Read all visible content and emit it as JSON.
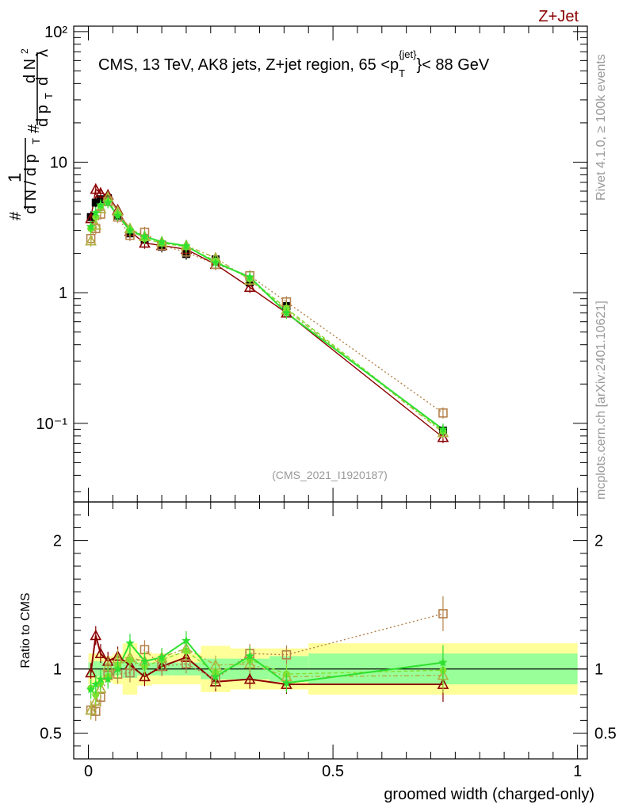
{
  "header": {
    "process_label": "Z+Jet",
    "plot_title": "CMS, 13 TeV, AK8 jets, Z+jet region, 65 <p_T^{jet}< 88 GeV",
    "title_main": "CMS, 13 TeV, AK8 jets, Z+jet region, 65 <p",
    "title_sub": "T",
    "title_sup": "{jet}",
    "title_end": "}< 88 GeV",
    "analysis_id": "(CMS_2021_I1920187)"
  },
  "side_labels": {
    "rivet": "Rivet 4.1.0, ≥ 100k events",
    "mcplots": "mcplots.cern.ch [arXiv:2401.10621]"
  },
  "colors": {
    "data": "#000000",
    "dark_red": "#8b0000",
    "tan": "#b5824b",
    "olive": "#b0b040",
    "light_green": "#80e030",
    "green": "#30e030",
    "band_yellow": "#ffff99",
    "band_green": "#99ff99"
  },
  "chart_data": [
    {
      "type": "scatter",
      "panel": "main",
      "xlabel": "groomed width (charged-only)",
      "ylabel": "1/dN/dp_T d²N/dp_T dλ",
      "xlim": [
        -0.03,
        1.02
      ],
      "ylim": [
        0.025,
        110
      ],
      "y_scale": "log",
      "y_ticks": [
        "10⁻¹",
        "1",
        "10",
        "10²"
      ],
      "x_ticks": [
        "0",
        "0.5",
        "1"
      ],
      "x": [
        0.005,
        0.015,
        0.025,
        0.04,
        0.06,
        0.085,
        0.115,
        0.15,
        0.2,
        0.26,
        0.33,
        0.405,
        0.725
      ],
      "series": [
        {
          "marker": "square-filled",
          "color": "#000000",
          "values": [
            3.8,
            4.9,
            5.2,
            5.3,
            3.9,
            2.85,
            2.55,
            2.25,
            1.98,
            1.8,
            1.2,
            0.79,
            0.088
          ]
        },
        {
          "marker": "triangle-open",
          "color": "#8b0000",
          "values": [
            3.7,
            6.2,
            5.8,
            5.6,
            4.3,
            2.95,
            2.4,
            2.3,
            2.15,
            1.65,
            1.1,
            0.7,
            0.078
          ]
        },
        {
          "marker": "square-open",
          "color": "#b5824b",
          "values": [
            2.6,
            3.1,
            4.0,
            5.0,
            3.8,
            2.75,
            2.9,
            2.3,
            2.05,
            1.65,
            1.35,
            0.85,
            0.12
          ]
        },
        {
          "marker": "triangle-open",
          "color": "#b0b040",
          "values": [
            2.5,
            3.3,
            4.4,
            5.4,
            4.2,
            3.1,
            2.7,
            2.45,
            2.3,
            1.85,
            1.25,
            0.74,
            0.085
          ]
        },
        {
          "marker": "circle-filled",
          "color": "#80e030",
          "values": [
            3.1,
            3.8,
            4.6,
            5.0,
            4.0,
            3.05,
            2.6,
            2.4,
            2.25,
            1.75,
            1.28,
            0.76,
            0.087
          ]
        },
        {
          "marker": "star",
          "color": "#30e030",
          "values": [
            3.2,
            4.1,
            4.7,
            4.9,
            3.9,
            3.0,
            2.7,
            2.45,
            2.28,
            1.7,
            1.32,
            0.7,
            0.09
          ]
        }
      ]
    },
    {
      "type": "line",
      "panel": "ratio",
      "ylabel": "Ratio to CMS",
      "ylim": [
        0.3,
        2.3
      ],
      "y_ticks": [
        "0.5",
        "1",
        "2"
      ],
      "x": [
        0.005,
        0.015,
        0.025,
        0.04,
        0.06,
        0.085,
        0.115,
        0.15,
        0.2,
        0.26,
        0.33,
        0.405,
        0.725
      ],
      "band_bins": [
        [
          0.0,
          0.01
        ],
        [
          0.01,
          0.02
        ],
        [
          0.02,
          0.03
        ],
        [
          0.03,
          0.05
        ],
        [
          0.05,
          0.07
        ],
        [
          0.07,
          0.1
        ],
        [
          0.1,
          0.13
        ],
        [
          0.13,
          0.17
        ],
        [
          0.17,
          0.23
        ],
        [
          0.23,
          0.29
        ],
        [
          0.29,
          0.37
        ],
        [
          0.37,
          0.45
        ],
        [
          0.45,
          1.0
        ]
      ],
      "band_stat": [
        0.05,
        0.06,
        0.06,
        0.05,
        0.05,
        0.07,
        0.05,
        0.05,
        0.05,
        0.08,
        0.08,
        0.1,
        0.12
      ],
      "band_total": [
        0.12,
        0.12,
        0.12,
        0.1,
        0.12,
        0.2,
        0.13,
        0.12,
        0.12,
        0.18,
        0.16,
        0.16,
        0.2
      ],
      "series": [
        {
          "marker": "triangle-open",
          "color": "#8b0000",
          "values": [
            0.97,
            1.26,
            1.12,
            1.06,
            1.1,
            1.03,
            0.94,
            1.02,
            1.09,
            0.9,
            0.92,
            0.88,
            0.88
          ]
        },
        {
          "marker": "square-open",
          "color": "#b5824b",
          "values": [
            0.68,
            0.67,
            0.78,
            0.95,
            0.96,
            0.97,
            1.15,
            1.02,
            1.04,
            0.92,
            1.12,
            1.11,
            1.43
          ]
        },
        {
          "marker": "triangle-open",
          "color": "#b0b040",
          "values": [
            0.68,
            0.75,
            0.85,
            1.02,
            1.08,
            1.09,
            1.06,
            1.09,
            1.16,
            1.03,
            1.04,
            0.94,
            0.95
          ]
        },
        {
          "marker": "circle-filled",
          "color": "#80e030",
          "values": [
            0.85,
            0.8,
            0.89,
            0.94,
            1.03,
            1.07,
            1.02,
            1.07,
            1.14,
            0.97,
            1.07,
            0.96,
            0.99
          ]
        },
        {
          "marker": "star",
          "color": "#30e030",
          "values": [
            0.84,
            0.88,
            0.92,
            0.92,
            1.0,
            1.2,
            1.06,
            1.09,
            1.22,
            0.94,
            1.1,
            0.89,
            1.05
          ]
        }
      ]
    }
  ]
}
